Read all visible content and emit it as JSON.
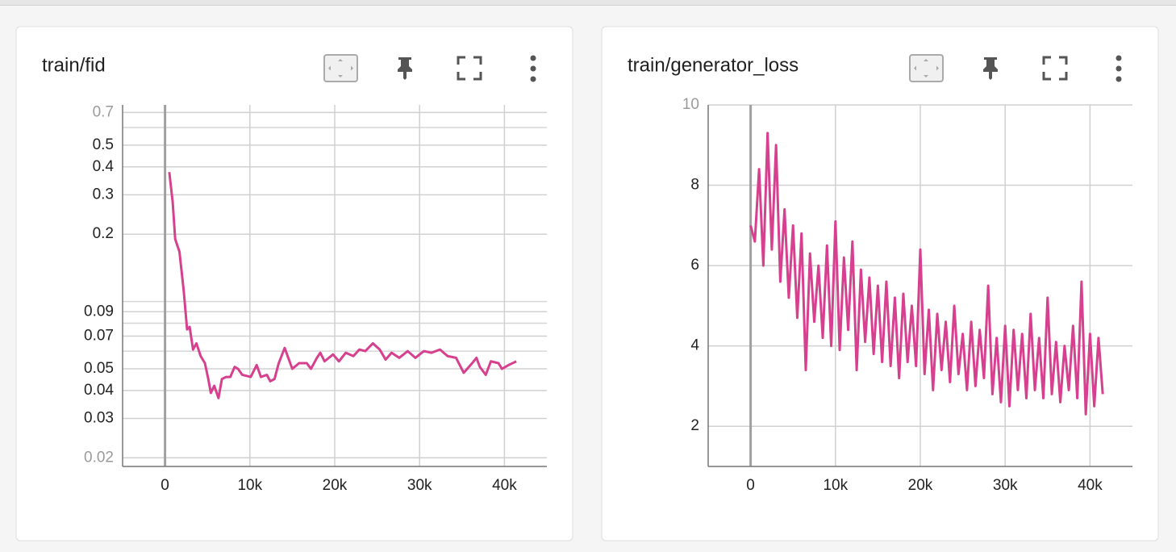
{
  "chart_data": [
    {
      "type": "line",
      "title": "train/fid",
      "color": "#d6408e",
      "log_y": true,
      "grid": true,
      "x": [
        500,
        900,
        1200,
        1700,
        2200,
        2600,
        2900,
        3300,
        3700,
        4200,
        4700,
        5100,
        5400,
        5800,
        6300,
        6700,
        7200,
        7700,
        8200,
        8600,
        9100,
        10100,
        10800,
        11300,
        12000,
        12400,
        12900,
        13400,
        14100,
        14600,
        15000,
        15800,
        16700,
        17200,
        17900,
        18300,
        18800,
        19800,
        20500,
        21300,
        22200,
        22900,
        23600,
        24500,
        25300,
        26000,
        26700,
        27600,
        28600,
        29500,
        30500,
        31400,
        32400,
        33300,
        34300,
        35200,
        36200,
        36700,
        37100,
        37800,
        38400,
        39300,
        39700,
        40500,
        41400
      ],
      "values": [
        0.379,
        0.279,
        0.19,
        0.167,
        0.112,
        0.075,
        0.077,
        0.061,
        0.065,
        0.057,
        0.053,
        0.045,
        0.039,
        0.042,
        0.037,
        0.045,
        0.046,
        0.046,
        0.051,
        0.05,
        0.047,
        0.046,
        0.052,
        0.046,
        0.047,
        0.044,
        0.045,
        0.053,
        0.062,
        0.055,
        0.05,
        0.053,
        0.053,
        0.05,
        0.056,
        0.059,
        0.054,
        0.058,
        0.054,
        0.059,
        0.057,
        0.061,
        0.06,
        0.065,
        0.061,
        0.055,
        0.059,
        0.056,
        0.06,
        0.056,
        0.06,
        0.059,
        0.061,
        0.057,
        0.056,
        0.048,
        0.053,
        0.056,
        0.051,
        0.047,
        0.054,
        0.053,
        0.05,
        0.052,
        0.054
      ],
      "xlim": [
        -5000,
        45000
      ],
      "xticks": [
        0,
        {
          "value": 10000,
          "label": "10k"
        },
        {
          "value": 20000,
          "label": "20k"
        },
        {
          "value": 30000,
          "label": "30k"
        },
        {
          "value": 40000,
          "label": "40k"
        }
      ],
      "ylim": [
        0.0183,
        0.757
      ],
      "yticks": [
        0.02,
        0.03,
        0.04,
        0.05,
        0.07,
        0.09,
        0.2,
        0.3,
        0.4,
        0.5,
        0.7
      ],
      "yminor": [
        0.06,
        0.08,
        0.1,
        0.6
      ]
    },
    {
      "type": "line",
      "title": "train/generator_loss",
      "color": "#d6408e",
      "log_y": false,
      "grid": true,
      "x": [
        0,
        500,
        1000,
        1500,
        2000,
        2500,
        3000,
        3500,
        4000,
        4500,
        5000,
        5500,
        6000,
        6500,
        7000,
        7500,
        8000,
        8500,
        9000,
        9500,
        10000,
        10500,
        11000,
        11500,
        12000,
        12500,
        13000,
        13500,
        14000,
        14500,
        15000,
        15500,
        16000,
        16500,
        17000,
        17500,
        18000,
        18500,
        19000,
        19500,
        20000,
        20500,
        21000,
        21500,
        22000,
        22500,
        23000,
        23500,
        24000,
        24500,
        25000,
        25500,
        26000,
        26500,
        27000,
        27500,
        28000,
        28500,
        29000,
        29500,
        30000,
        30500,
        31000,
        31500,
        32000,
        32500,
        33000,
        33500,
        34000,
        34500,
        35000,
        35500,
        36000,
        36500,
        37000,
        37500,
        38000,
        38500,
        39000,
        39500,
        40000,
        40500,
        41000,
        41500
      ],
      "values": [
        7.0,
        6.6,
        8.4,
        6.0,
        9.3,
        6.4,
        9.0,
        5.6,
        7.4,
        5.2,
        7.0,
        4.7,
        6.8,
        3.4,
        6.3,
        4.6,
        6.0,
        4.2,
        6.5,
        4.0,
        7.1,
        3.9,
        6.2,
        4.4,
        6.6,
        3.4,
        5.9,
        4.1,
        5.7,
        3.8,
        5.5,
        3.6,
        5.6,
        3.5,
        5.2,
        3.2,
        5.3,
        3.6,
        5.0,
        3.5,
        6.4,
        3.3,
        4.9,
        2.9,
        4.8,
        3.4,
        4.6,
        3.1,
        5.0,
        3.3,
        4.3,
        2.9,
        4.6,
        3.0,
        4.4,
        3.2,
        5.5,
        2.8,
        4.2,
        2.6,
        4.5,
        2.5,
        4.4,
        2.9,
        4.3,
        2.7,
        4.8,
        2.9,
        4.2,
        2.7,
        5.2,
        2.8,
        4.1,
        2.6,
        4.0,
        2.9,
        4.5,
        2.7,
        5.6,
        2.3,
        4.3,
        2.5,
        4.2,
        2.8
      ],
      "xlim": [
        -5000,
        45000
      ],
      "xticks": [
        0,
        {
          "value": 10000,
          "label": "10k"
        },
        {
          "value": 20000,
          "label": "20k"
        },
        {
          "value": 30000,
          "label": "30k"
        },
        {
          "value": 40000,
          "label": "40k"
        }
      ],
      "ylim": [
        1,
        10
      ],
      "yticks": [
        2,
        4,
        6,
        8,
        10
      ]
    }
  ]
}
